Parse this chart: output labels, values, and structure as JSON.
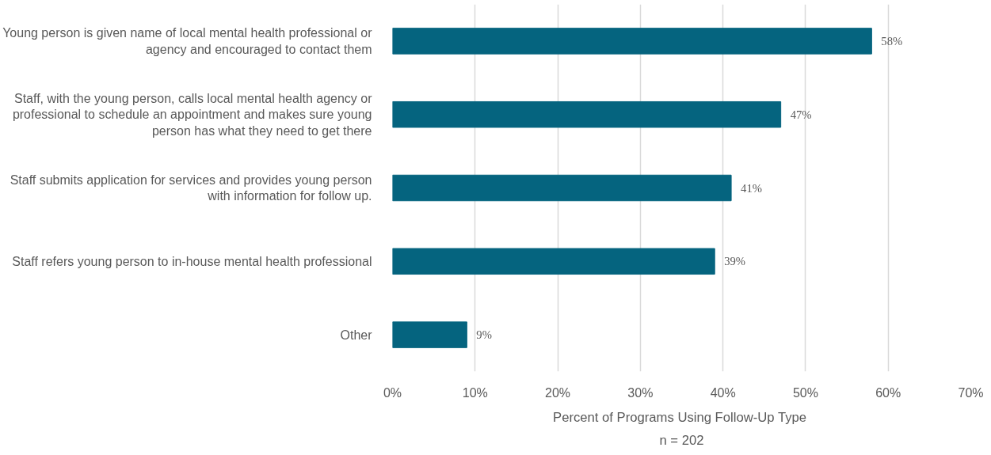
{
  "chart_data": {
    "type": "bar",
    "orientation": "horizontal",
    "categories": [
      "Young person is given name of local mental health professional or\nagency and encouraged to contact them",
      "Staff, with the young person, calls local mental health agency or\nprofessional to schedule an appointment and makes sure young\nperson has what they need to get there",
      "Staff submits application for services and provides young person\nwith information for follow up.",
      "Staff refers young person to in-house mental health professional",
      "Other"
    ],
    "values": [
      58,
      47,
      41,
      39,
      9
    ],
    "value_labels": [
      "58%",
      "47%",
      "41%",
      "39%",
      "9%"
    ],
    "color": "#05647f",
    "xlim": [
      0,
      70
    ],
    "xticks": [
      {
        "value": 0,
        "label": "0%"
      },
      {
        "value": 10,
        "label": "10%"
      },
      {
        "value": 20,
        "label": "20%"
      },
      {
        "value": 30,
        "label": "30%"
      },
      {
        "value": 40,
        "label": "40%"
      },
      {
        "value": 50,
        "label": "50%"
      },
      {
        "value": 60,
        "label": "60%"
      },
      {
        "value": 70,
        "label": "70%"
      }
    ],
    "xlabel": "Percent of  Programs Using Follow-Up Type",
    "annotations": [
      "n = 202"
    ],
    "grid": "x"
  }
}
